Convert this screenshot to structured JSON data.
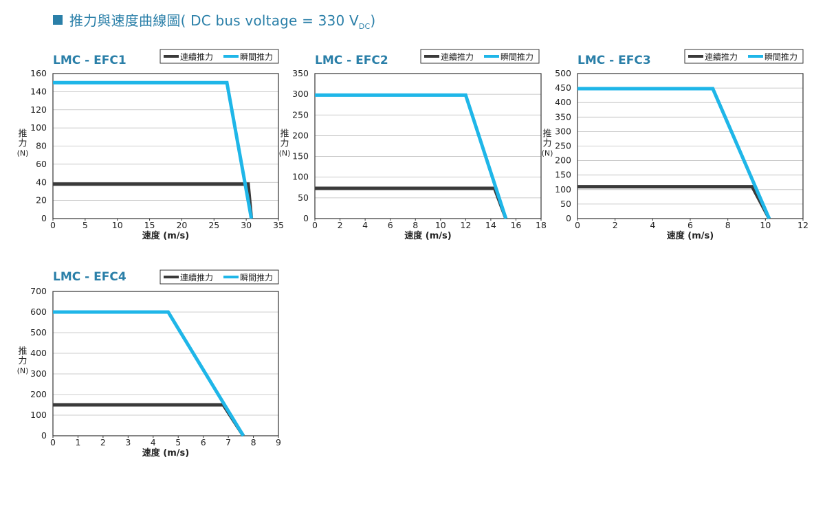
{
  "header": {
    "title_main": "推力與速度曲線圖( DC bus voltage = 330 V",
    "title_sub": "DC",
    "title_end": ")"
  },
  "colors": {
    "continuous": "#3a3a3a",
    "peak": "#1fb6e8",
    "title": "#2a7fa8",
    "grid": "#bbbbbb"
  },
  "chart_data": [
    {
      "type": "line",
      "title": "LMC - EFC1",
      "xlabel": "速度 (m/s)",
      "ylabel": [
        "推",
        "力",
        "(N)"
      ],
      "xlim": [
        0,
        35
      ],
      "ylim": [
        0,
        160
      ],
      "xticks": [
        0,
        5,
        10,
        15,
        20,
        25,
        30,
        35
      ],
      "yticks": [
        0,
        20,
        40,
        60,
        80,
        100,
        120,
        140,
        160
      ],
      "grid": true,
      "legend_position": "top-right",
      "series": [
        {
          "name": "連續推力",
          "color_key": "continuous",
          "x": [
            0,
            30.3,
            30.8
          ],
          "y": [
            38,
            38,
            0
          ]
        },
        {
          "name": "瞬間推力",
          "color_key": "peak",
          "x": [
            0,
            27,
            30.8
          ],
          "y": [
            150,
            150,
            0
          ]
        }
      ]
    },
    {
      "type": "line",
      "title": "LMC - EFC2",
      "xlabel": "速度 (m/s)",
      "ylabel": [
        "推",
        "力",
        "(N)"
      ],
      "xlim": [
        0,
        18
      ],
      "ylim": [
        0,
        350
      ],
      "xticks": [
        0,
        2,
        4,
        6,
        8,
        10,
        12,
        14,
        16,
        18
      ],
      "yticks": [
        0,
        50,
        100,
        150,
        200,
        250,
        300,
        350
      ],
      "grid": true,
      "legend_position": "top-right",
      "series": [
        {
          "name": "連續推力",
          "color_key": "continuous",
          "x": [
            0,
            14.3,
            15.2
          ],
          "y": [
            73,
            73,
            0
          ]
        },
        {
          "name": "瞬間推力",
          "color_key": "peak",
          "x": [
            0,
            12,
            15.2
          ],
          "y": [
            298,
            298,
            0
          ]
        }
      ]
    },
    {
      "type": "line",
      "title": "LMC - EFC3",
      "xlabel": "速度 (m/s)",
      "ylabel": [
        "推",
        "力",
        "(N)"
      ],
      "xlim": [
        0,
        12
      ],
      "ylim": [
        0,
        500
      ],
      "xticks": [
        0,
        2,
        4,
        6,
        8,
        10,
        12
      ],
      "yticks": [
        0,
        50,
        100,
        150,
        200,
        250,
        300,
        350,
        400,
        450,
        500
      ],
      "grid": true,
      "legend_position": "top-right",
      "series": [
        {
          "name": "連續推力",
          "color_key": "continuous",
          "x": [
            0,
            9.3,
            10.2
          ],
          "y": [
            110,
            110,
            0
          ]
        },
        {
          "name": "瞬間推力",
          "color_key": "peak",
          "x": [
            0,
            7.2,
            10.2
          ],
          "y": [
            448,
            448,
            0
          ]
        }
      ]
    },
    {
      "type": "line",
      "title": "LMC - EFC4",
      "xlabel": "速度 (m/s)",
      "ylabel": [
        "推",
        "力",
        "(N)"
      ],
      "xlim": [
        0,
        9
      ],
      "ylim": [
        0,
        700
      ],
      "xticks": [
        0,
        1,
        2,
        3,
        4,
        5,
        6,
        7,
        8,
        9
      ],
      "yticks": [
        0,
        100,
        200,
        300,
        400,
        500,
        600,
        700
      ],
      "grid": true,
      "legend_position": "top-right",
      "series": [
        {
          "name": "連續推力",
          "color_key": "continuous",
          "x": [
            0,
            6.8,
            7.6
          ],
          "y": [
            150,
            150,
            0
          ]
        },
        {
          "name": "瞬間推力",
          "color_key": "peak",
          "x": [
            0,
            4.6,
            7.6
          ],
          "y": [
            600,
            600,
            0
          ]
        }
      ]
    }
  ]
}
